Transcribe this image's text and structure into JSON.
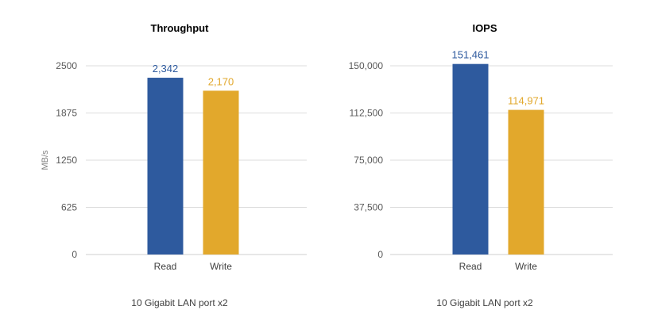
{
  "chart_data": [
    {
      "type": "bar",
      "title": "Throughput",
      "subtitle": "10 Gigabit LAN port x2",
      "ylabel": "MB/s",
      "xlabel": "",
      "categories": [
        "Read",
        "Write"
      ],
      "values": [
        2342,
        2170
      ],
      "value_labels": [
        "2,342",
        "2,170"
      ],
      "ylim": [
        0,
        2500
      ],
      "yticks": [
        0,
        625,
        1250,
        1875,
        2500
      ],
      "ytick_labels": [
        "0",
        "625",
        "1250",
        "1875",
        "2500"
      ],
      "grid": true,
      "legend": "none",
      "colors": [
        "#2e5a9e",
        "#e2a82c"
      ]
    },
    {
      "type": "bar",
      "title": "IOPS",
      "subtitle": "10 Gigabit LAN port x2",
      "ylabel": "",
      "xlabel": "",
      "categories": [
        "Read",
        "Write"
      ],
      "values": [
        151461,
        114971
      ],
      "value_labels": [
        "151,461",
        "114,971"
      ],
      "ylim": [
        0,
        150000
      ],
      "yticks": [
        0,
        37500,
        75000,
        112500,
        150000
      ],
      "ytick_labels": [
        "0",
        "37,500",
        "75,000",
        "112,500",
        "150,000"
      ],
      "grid": true,
      "legend": "none",
      "colors": [
        "#2e5a9e",
        "#e2a82c"
      ]
    }
  ]
}
